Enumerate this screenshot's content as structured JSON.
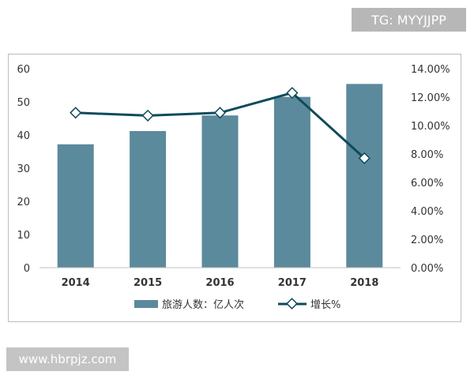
{
  "watermarks": {
    "top": "TG: MYYJJPP",
    "bottom": "www.hbrpjz.com"
  },
  "colors": {
    "bar": "#5b8a9c",
    "line": "#0e4b5b",
    "marker_fill": "#ffffff"
  },
  "chart_data": {
    "type": "bar",
    "categories": [
      "2014",
      "2015",
      "2016",
      "2017",
      "2018"
    ],
    "series": [
      {
        "name": "旅游人数：亿人次",
        "type": "bar",
        "axis": "left",
        "values": [
          37.2,
          41.2,
          45.9,
          51.5,
          55.4
        ]
      },
      {
        "name": "增长%",
        "type": "line",
        "axis": "right",
        "values": [
          10.9,
          10.7,
          10.9,
          12.3,
          7.7
        ]
      }
    ],
    "y_left": {
      "range": [
        0,
        60
      ],
      "ticks": [
        "0",
        "10",
        "20",
        "30",
        "40",
        "50",
        "60"
      ]
    },
    "y_right": {
      "range": [
        0,
        14
      ],
      "ticks": [
        "0.00%",
        "2.00%",
        "4.00%",
        "6.00%",
        "8.00%",
        "10.00%",
        "12.00%",
        "14.00%"
      ]
    },
    "grid": false,
    "legend_position": "bottom"
  }
}
